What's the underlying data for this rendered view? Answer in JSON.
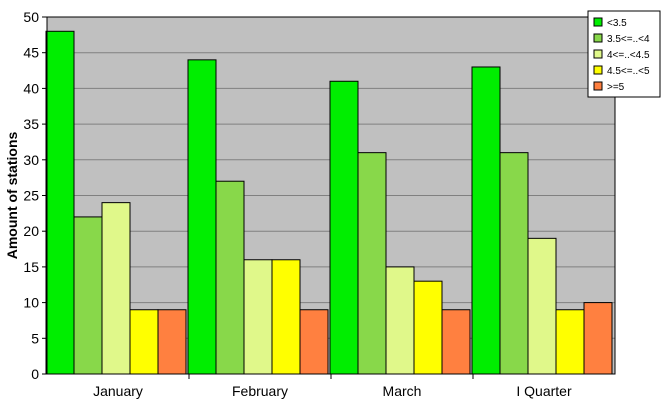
{
  "chart_data": {
    "type": "bar",
    "title": "",
    "xlabel": "",
    "ylabel": "Amount of stations",
    "categories": [
      "January",
      "February",
      "March",
      "I Quarter"
    ],
    "ylim": [
      0,
      50
    ],
    "yticks": [
      0,
      5,
      10,
      15,
      20,
      25,
      30,
      35,
      40,
      45,
      50
    ],
    "grid": true,
    "plot_background": "#c0c0c0",
    "legend_position": "top-right",
    "series": [
      {
        "name": "<3.5",
        "color": "#00ee00",
        "values": [
          48,
          44,
          41,
          43
        ]
      },
      {
        "name": "3.5<=..<4",
        "color": "#88d84a",
        "values": [
          22,
          27,
          31,
          31
        ]
      },
      {
        "name": "4<=..<4.5",
        "color": "#e0f88a",
        "values": [
          24,
          16,
          15,
          19
        ]
      },
      {
        "name": "4.5<=..<5",
        "color": "#ffff00",
        "values": [
          9,
          16,
          13,
          9
        ]
      },
      {
        "name": ">=5",
        "color": "#ff8040",
        "values": [
          9,
          9,
          9,
          10
        ]
      }
    ]
  }
}
